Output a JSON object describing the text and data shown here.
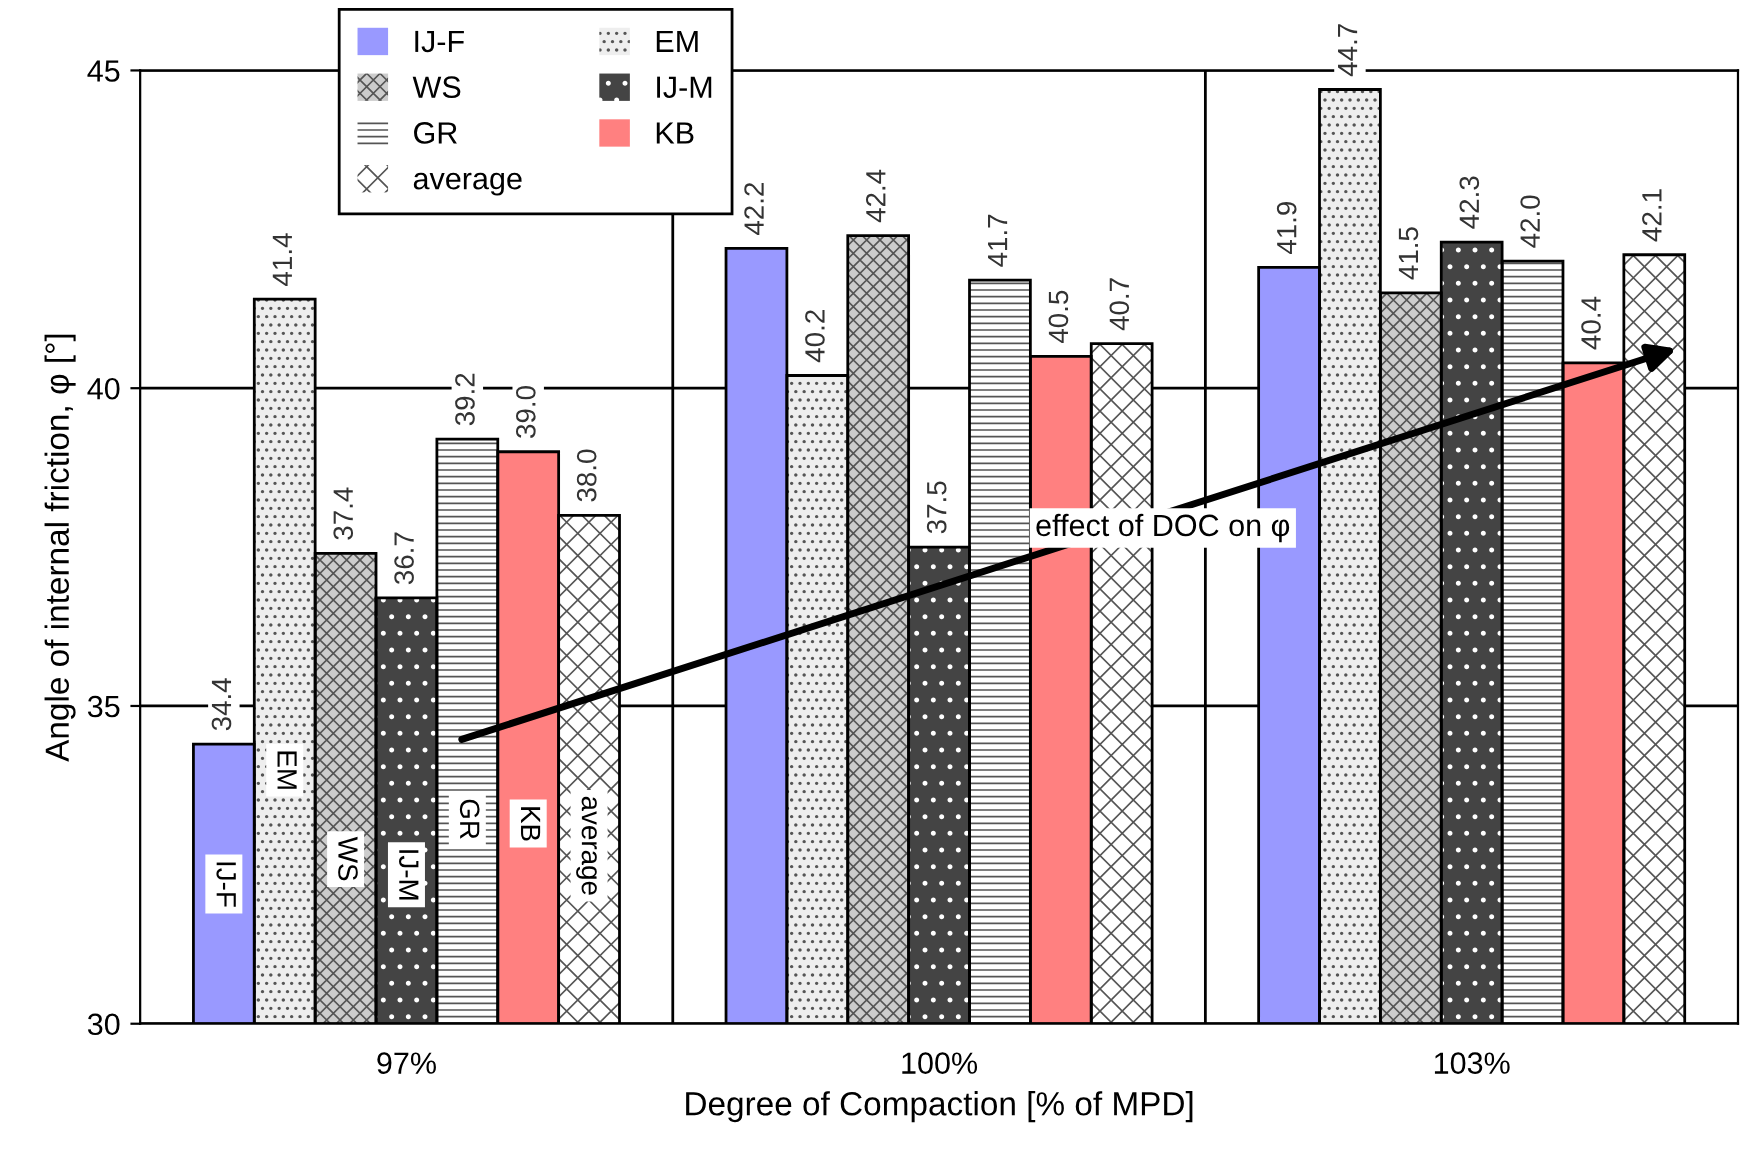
{
  "chart_data": {
    "type": "bar",
    "xlabel": "Degree of Compaction [% of MPD]",
    "ylabel": "Angle of internal friction, φ [°]",
    "categories": [
      "97%",
      "100%",
      "103%"
    ],
    "series": [
      {
        "name": "IJ-F",
        "color": "#9999ff",
        "values": [
          34.4,
          42.2,
          41.9
        ],
        "value_labels": [
          "34.4",
          "42.2",
          "41.9"
        ]
      },
      {
        "name": "EM",
        "color": "#eeeeee",
        "values": [
          41.4,
          40.2,
          44.7
        ],
        "value_labels": [
          "41.4",
          "40.2",
          "44.7"
        ]
      },
      {
        "name": "WS",
        "color": "#cccccc",
        "values": [
          37.4,
          42.4,
          41.5
        ],
        "value_labels": [
          "37.4",
          "42.4",
          "41.5"
        ]
      },
      {
        "name": "IJ-M",
        "color": "#444444",
        "values": [
          36.7,
          37.5,
          42.3
        ],
        "value_labels": [
          "36.7",
          "37.5",
          "42.3"
        ]
      },
      {
        "name": "GR",
        "color": "#ffffff",
        "values": [
          39.2,
          41.7,
          42.0
        ],
        "value_labels": [
          "39.2",
          "41.7",
          "42.0"
        ]
      },
      {
        "name": "KB",
        "color": "#ff8080",
        "values": [
          39.0,
          40.5,
          40.4
        ],
        "value_labels": [
          "39.0",
          "40.5",
          "40.4"
        ]
      },
      {
        "name": "average",
        "color": "#ffffff",
        "values": [
          38.0,
          40.7,
          42.1
        ],
        "value_labels": [
          "38.0",
          "40.7",
          "42.1"
        ]
      }
    ],
    "ylim": [
      30,
      45
    ],
    "yticks": [
      30,
      35,
      40,
      45
    ],
    "grid": "y",
    "legend": "top left",
    "annotations": [
      "effect of DOC on φ"
    ]
  }
}
